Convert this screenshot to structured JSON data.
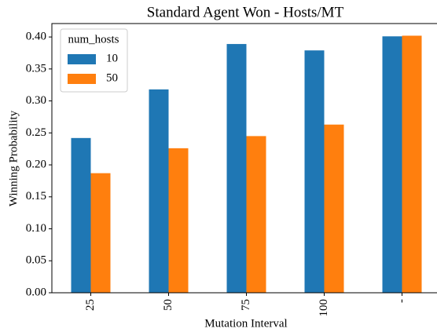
{
  "chart_data": {
    "type": "bar",
    "title": "Standard Agent Won - Hosts/MT",
    "x_label": "Mutation Interval",
    "y_label": "Winning Probability",
    "categories": [
      "25",
      "50",
      "75",
      "100",
      "-"
    ],
    "legend_title": "num_hosts",
    "legend_position": "upper left",
    "series": [
      {
        "name": "10",
        "color": "#1f77b4",
        "values": [
          0.242,
          0.318,
          0.389,
          0.379,
          0.401
        ]
      },
      {
        "name": "50",
        "color": "#ff7f0e",
        "values": [
          0.187,
          0.226,
          0.245,
          0.263,
          0.402
        ]
      }
    ],
    "ylim": [
      0,
      0.421
    ],
    "yticks": [
      {
        "value": 0,
        "label": "0.00"
      },
      {
        "value": 0.05,
        "label": "0.05"
      },
      {
        "value": 0.1,
        "label": "0.10"
      },
      {
        "value": 0.15,
        "label": "0.15"
      },
      {
        "value": 0.2,
        "label": "0.20"
      },
      {
        "value": 0.25,
        "label": "0.25"
      },
      {
        "value": 0.3,
        "label": "0.30"
      },
      {
        "value": 0.35,
        "label": "0.35"
      },
      {
        "value": 0.4,
        "label": "0.40"
      }
    ],
    "grid": false
  }
}
